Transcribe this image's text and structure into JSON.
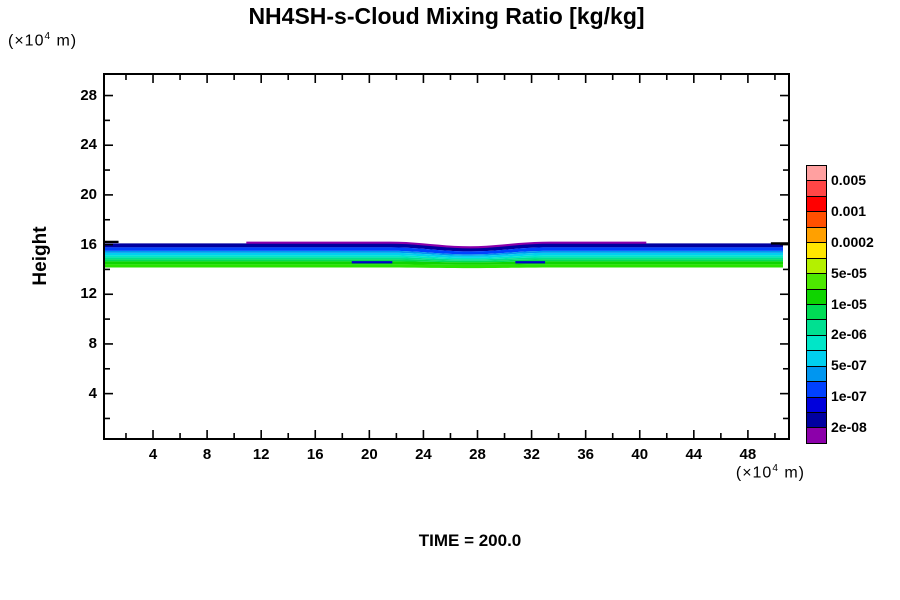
{
  "title": "NH4SH-s-Cloud Mixing Ratio [kg/kg]",
  "time_label": "TIME = 200.0",
  "y_axis": {
    "label": "Height",
    "unit_base": "(×10",
    "unit_exp": "4",
    "unit_rest": " m)",
    "major_ticks": [
      4,
      8,
      12,
      16,
      20,
      24,
      28
    ],
    "minor_ticks": [
      2,
      6,
      10,
      14,
      18,
      22,
      26
    ],
    "range": [
      0.3,
      29.8
    ]
  },
  "x_axis": {
    "unit_base": "(×10",
    "unit_exp": "4",
    "unit_rest": " m)",
    "major_ticks": [
      4,
      8,
      12,
      16,
      20,
      24,
      28,
      32,
      36,
      40,
      44,
      48
    ],
    "minor_ticks": [
      2,
      6,
      10,
      14,
      18,
      22,
      26,
      30,
      34,
      38,
      42,
      46,
      50
    ],
    "range": [
      0.3,
      51.1
    ]
  },
  "colorbar": {
    "cells_top_to_bottom": [
      "#FFA0A0",
      "#FF4646",
      "#FF0000",
      "#FF5000",
      "#FFA000",
      "#FFE600",
      "#B4F000",
      "#4DE800",
      "#0FD400",
      "#00DC55",
      "#00E091",
      "#00E6C8",
      "#00CFEF",
      "#0096F0",
      "#0041FF",
      "#0000DC",
      "#0000A0",
      "#8C00AA"
    ],
    "labels": [
      {
        "text": "0.005",
        "boundary": 1
      },
      {
        "text": "0.001",
        "boundary": 3
      },
      {
        "text": "0.0002",
        "boundary": 5
      },
      {
        "text": "5e-05",
        "boundary": 7
      },
      {
        "text": "1e-05",
        "boundary": 9
      },
      {
        "text": "2e-06",
        "boundary": 11
      },
      {
        "text": "5e-07",
        "boundary": 13
      },
      {
        "text": "1e-07",
        "boundary": 15
      },
      {
        "text": "2e-08",
        "boundary": 17
      }
    ]
  },
  "chart_data": {
    "type": "heatmap",
    "title": "NH4SH-s-Cloud Mixing Ratio [kg/kg]",
    "xlabel": "(×10^4 m)",
    "ylabel": "Height (×10^4 m)",
    "x_range": [
      0.3,
      51.1
    ],
    "y_range": [
      0.3,
      29.8
    ],
    "time": 200.0,
    "legend_levels": [
      "2e-08",
      "1e-07",
      "5e-07",
      "2e-06",
      "1e-05",
      "5e-05",
      "0.0002",
      "0.001",
      "0.005"
    ],
    "cloud_band": {
      "description": "Thin horizontal cloud layer near height 15×10^4 m spanning the full x range; mixing ratio increases downward from ~2e-08 at cloud top (~16.1) to ~2e-05 at cloud base (~14.3); slight sag of ~0.37 units centered near x = 27.4.",
      "y_top": 16.1,
      "y_bottom": 14.15,
      "dip_center_x": 27.4,
      "dip_half_width_x": 5.8,
      "dip_depth": 0.37,
      "layers_top_to_bottom": [
        {
          "value": "2e-08",
          "color": "#0000A0",
          "thickness_px": 4.0
        },
        {
          "value": "5e-08",
          "color": "#0041FF",
          "thickness_px": 3.5
        },
        {
          "value": "1e-07",
          "color": "#0096F0",
          "thickness_px": 2.0
        },
        {
          "value": "5e-07",
          "color": "#00CFEF",
          "thickness_px": 2.5
        },
        {
          "value": "1e-06",
          "color": "#00E6C8",
          "thickness_px": 2.0
        },
        {
          "value": "2e-06",
          "color": "#00E091",
          "thickness_px": 2.0
        },
        {
          "value": "5e-06",
          "color": "#00DC55",
          "thickness_px": 2.0
        },
        {
          "value": "1e-05",
          "color": "#0FD400",
          "thickness_px": 3.0
        },
        {
          "value": "2e-05",
          "color": "#29E300",
          "thickness_px": 3.2
        }
      ],
      "top_contour_line": {
        "color": "#8C00AA",
        "x1": 10.9,
        "x2": 40.8
      },
      "contour_marks": [
        {
          "color": "#000000",
          "x1": 0.35,
          "x2": 1.45,
          "y": 16.22
        },
        {
          "color": "#000000",
          "x1": 49.7,
          "x2": 51.05,
          "y": 16.1
        },
        {
          "color": "#0000C8",
          "x1": 18.7,
          "x2": 21.7,
          "y": 14.58
        },
        {
          "color": "#0000C8",
          "x1": 30.8,
          "x2": 33.0,
          "y": 14.58
        }
      ]
    }
  }
}
